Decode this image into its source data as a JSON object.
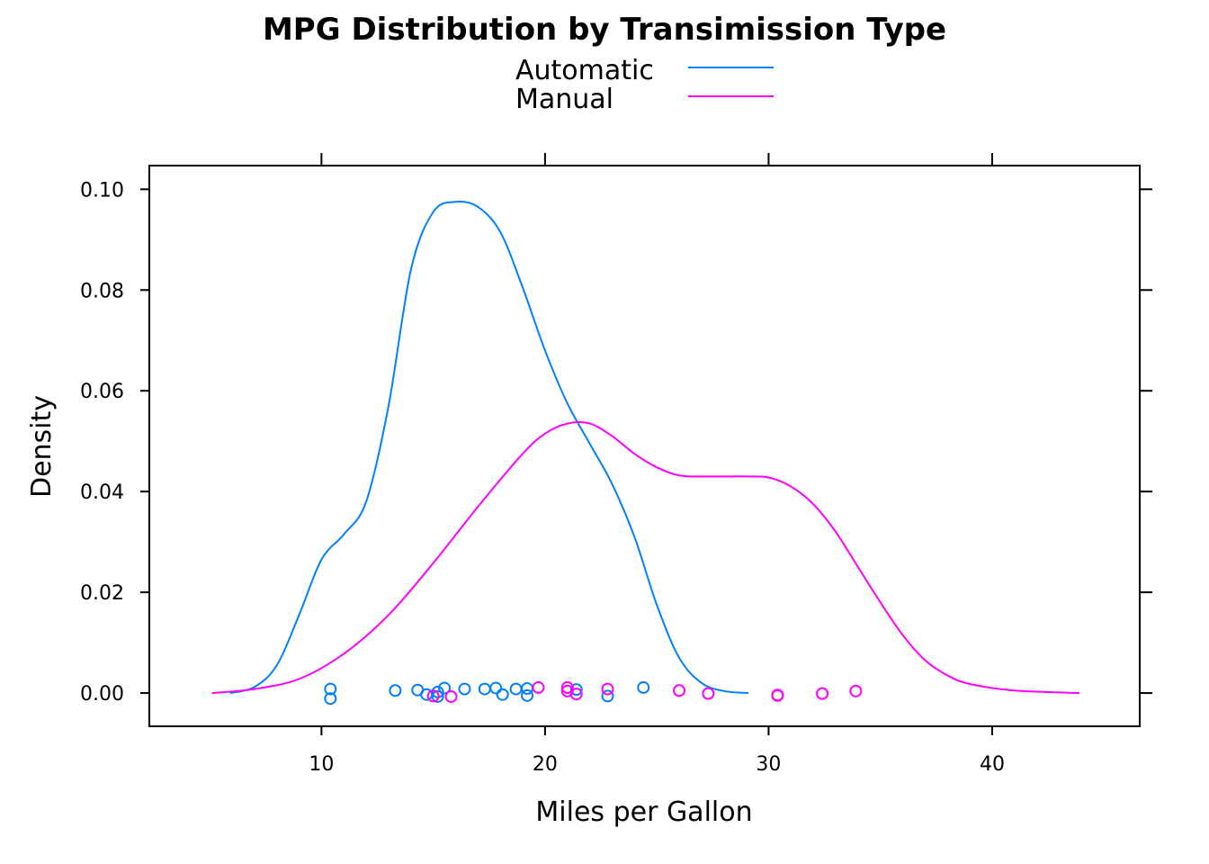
{
  "chart_data": {
    "type": "line",
    "title": "MPG Distribution by Transimission Type",
    "xlabel": "Miles per Gallon",
    "ylabel": "Density",
    "xlim": [
      2.3,
      46.6
    ],
    "ylim": [
      -0.0066,
      0.1047
    ],
    "x_ticks": [
      10,
      20,
      30,
      40
    ],
    "y_ticks": [
      0.0,
      0.02,
      0.04,
      0.06,
      0.08,
      0.1
    ],
    "x_tick_labels": [
      "10",
      "20",
      "30",
      "40"
    ],
    "y_tick_labels": [
      "0.00",
      "0.02",
      "0.04",
      "0.06",
      "0.08",
      "0.10"
    ],
    "grid": false,
    "legend_position": "top",
    "series": [
      {
        "name": "Automatic",
        "color": "#0080ff",
        "curve": [
          [
            5.9,
            0.0
          ],
          [
            7.0,
            0.0012
          ],
          [
            8.0,
            0.0055
          ],
          [
            9.0,
            0.0155
          ],
          [
            10.0,
            0.0265
          ],
          [
            11.0,
            0.0315
          ],
          [
            12.0,
            0.038
          ],
          [
            13.0,
            0.057
          ],
          [
            14.0,
            0.084
          ],
          [
            15.0,
            0.0955
          ],
          [
            16.0,
            0.0975
          ],
          [
            17.0,
            0.0965
          ],
          [
            18.0,
            0.0915
          ],
          [
            19.0,
            0.0805
          ],
          [
            20.0,
            0.068
          ],
          [
            21.0,
            0.0575
          ],
          [
            22.0,
            0.0495
          ],
          [
            23.0,
            0.0415
          ],
          [
            24.0,
            0.031
          ],
          [
            25.0,
            0.0175
          ],
          [
            26.0,
            0.007
          ],
          [
            27.0,
            0.002
          ],
          [
            28.0,
            0.0004
          ],
          [
            29.1,
            0.0
          ]
        ],
        "points": [
          [
            10.4,
            0.0008
          ],
          [
            10.4,
            -0.0011
          ],
          [
            13.3,
            0.0005
          ],
          [
            14.3,
            0.0006
          ],
          [
            14.7,
            -0.0003
          ],
          [
            15.2,
            0.0002
          ],
          [
            15.2,
            -0.0007
          ],
          [
            15.5,
            0.001
          ],
          [
            16.4,
            0.0008
          ],
          [
            17.3,
            0.0008
          ],
          [
            17.8,
            0.001
          ],
          [
            18.1,
            -0.0003
          ],
          [
            18.7,
            0.0008
          ],
          [
            19.2,
            0.0009
          ],
          [
            19.2,
            -0.0005
          ],
          [
            21.4,
            0.0007
          ],
          [
            22.8,
            -0.0006
          ],
          [
            24.4,
            0.0011
          ]
        ]
      },
      {
        "name": "Manual",
        "color": "#ff00ff",
        "curve": [
          [
            5.1,
            0.0
          ],
          [
            7.0,
            0.0008
          ],
          [
            9.0,
            0.0028
          ],
          [
            11.0,
            0.0078
          ],
          [
            13.0,
            0.0155
          ],
          [
            15.0,
            0.0258
          ],
          [
            17.0,
            0.037
          ],
          [
            19.0,
            0.0475
          ],
          [
            20.0,
            0.0515
          ],
          [
            21.0,
            0.0535
          ],
          [
            22.0,
            0.0535
          ],
          [
            23.0,
            0.051
          ],
          [
            24.0,
            0.0475
          ],
          [
            25.0,
            0.0448
          ],
          [
            26.0,
            0.0432
          ],
          [
            27.0,
            0.043
          ],
          [
            28.0,
            0.043
          ],
          [
            29.0,
            0.043
          ],
          [
            30.0,
            0.0428
          ],
          [
            31.0,
            0.041
          ],
          [
            32.0,
            0.0375
          ],
          [
            33.0,
            0.032
          ],
          [
            34.0,
            0.025
          ],
          [
            35.0,
            0.018
          ],
          [
            36.0,
            0.0115
          ],
          [
            37.0,
            0.0065
          ],
          [
            38.0,
            0.0035
          ],
          [
            39.0,
            0.0018
          ],
          [
            41.0,
            0.0005
          ],
          [
            43.9,
            0.0
          ]
        ],
        "points": [
          [
            15.0,
            -0.0006
          ],
          [
            15.8,
            -0.0007
          ],
          [
            19.7,
            0.0011
          ],
          [
            21.0,
            0.0011
          ],
          [
            21.0,
            0.0004
          ],
          [
            21.4,
            -0.0002
          ],
          [
            22.8,
            0.0008
          ],
          [
            26.0,
            0.0005
          ],
          [
            27.3,
            -0.0001
          ],
          [
            30.4,
            -0.0004
          ],
          [
            30.4,
            -0.0005
          ],
          [
            32.4,
            -0.0001
          ],
          [
            33.9,
            0.0004
          ]
        ]
      }
    ]
  }
}
